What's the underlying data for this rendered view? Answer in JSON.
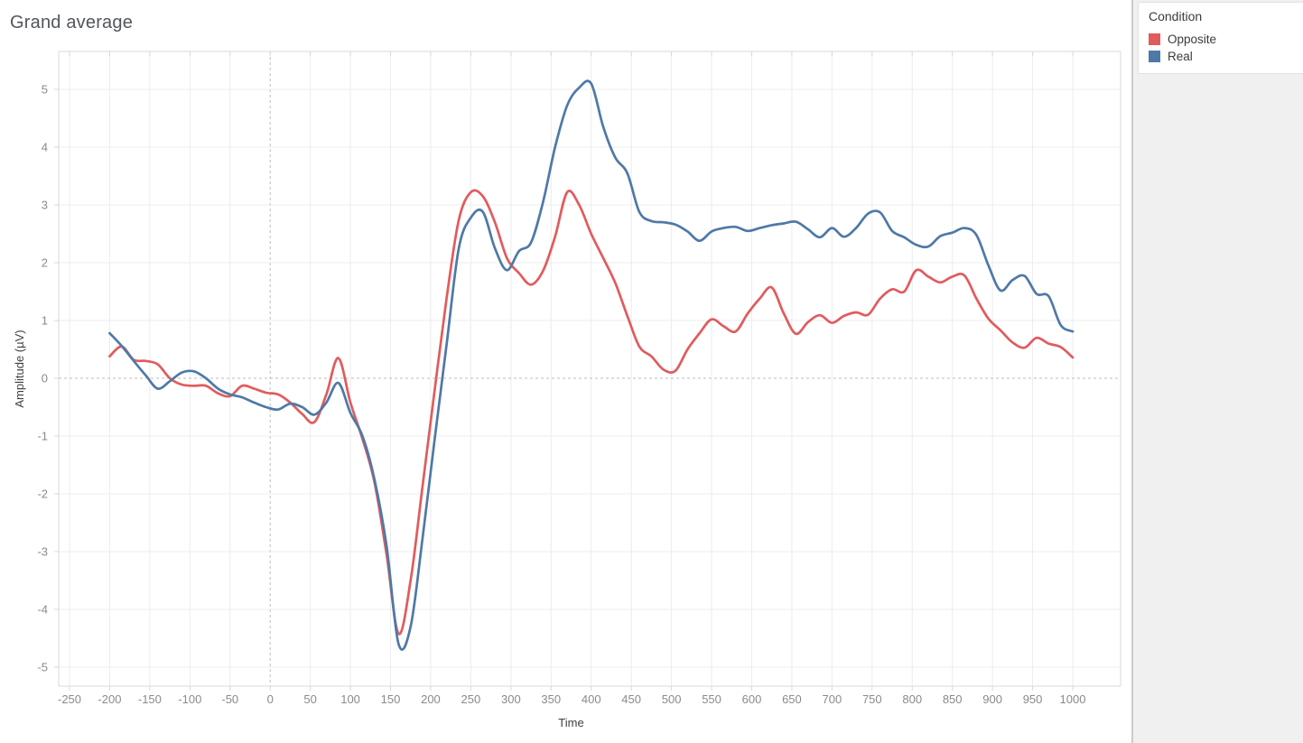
{
  "chart": {
    "title": "Grand average"
  },
  "legend": {
    "title": "Condition"
  },
  "chart_data": {
    "type": "line",
    "title": "Grand average",
    "xlabel": "Time",
    "ylabel": "Amplitude (µV)",
    "xlim": [
      -250,
      1000
    ],
    "ylim": [
      -5,
      5
    ],
    "x_ticks": [
      -250,
      -200,
      -150,
      -100,
      -50,
      0,
      50,
      100,
      150,
      200,
      250,
      300,
      350,
      400,
      450,
      500,
      550,
      600,
      650,
      700,
      750,
      800,
      850,
      900,
      950,
      1000
    ],
    "y_ticks": [
      -5,
      -4,
      -3,
      -2,
      -1,
      0,
      1,
      2,
      3,
      4,
      5
    ],
    "grid": true,
    "zero_lines": "dashed",
    "legend_position": "right",
    "x": [
      -200,
      -185,
      -170,
      -155,
      -140,
      -125,
      -110,
      -95,
      -80,
      -65,
      -50,
      -35,
      -20,
      -5,
      10,
      25,
      40,
      55,
      70,
      85,
      100,
      115,
      130,
      145,
      160,
      175,
      190,
      205,
      220,
      235,
      250,
      265,
      280,
      295,
      310,
      325,
      340,
      355,
      370,
      385,
      400,
      415,
      430,
      445,
      460,
      475,
      490,
      505,
      520,
      535,
      550,
      565,
      580,
      595,
      610,
      625,
      640,
      655,
      670,
      685,
      700,
      715,
      730,
      745,
      760,
      775,
      790,
      805,
      820,
      835,
      850,
      865,
      880,
      895,
      910,
      925,
      940,
      955,
      970,
      985,
      1000
    ],
    "series": [
      {
        "name": "Opposite",
        "color": "#e15b5d",
        "values": [
          0.38,
          0.55,
          0.32,
          0.3,
          0.24,
          0.0,
          -0.11,
          -0.13,
          -0.13,
          -0.26,
          -0.31,
          -0.13,
          -0.18,
          -0.25,
          -0.28,
          -0.42,
          -0.62,
          -0.76,
          -0.28,
          0.35,
          -0.42,
          -1.05,
          -1.8,
          -3.05,
          -4.42,
          -3.5,
          -1.85,
          -0.2,
          1.4,
          2.74,
          3.22,
          3.15,
          2.7,
          2.08,
          1.82,
          1.62,
          1.86,
          2.45,
          3.22,
          3.0,
          2.5,
          2.08,
          1.65,
          1.08,
          0.55,
          0.38,
          0.15,
          0.13,
          0.5,
          0.78,
          1.02,
          0.9,
          0.81,
          1.12,
          1.38,
          1.57,
          1.12,
          0.77,
          0.97,
          1.09,
          0.96,
          1.08,
          1.14,
          1.1,
          1.38,
          1.54,
          1.5,
          1.87,
          1.76,
          1.66,
          1.76,
          1.78,
          1.38,
          1.03,
          0.83,
          0.62,
          0.53,
          0.7,
          0.6,
          0.54,
          0.36
        ]
      },
      {
        "name": "Real",
        "color": "#4e79a7",
        "values": [
          0.78,
          0.56,
          0.3,
          0.05,
          -0.18,
          -0.05,
          0.1,
          0.12,
          0.0,
          -0.18,
          -0.28,
          -0.33,
          -0.42,
          -0.5,
          -0.54,
          -0.44,
          -0.5,
          -0.63,
          -0.42,
          -0.08,
          -0.6,
          -1.0,
          -1.75,
          -2.9,
          -4.6,
          -4.3,
          -2.75,
          -1.05,
          0.6,
          2.25,
          2.78,
          2.88,
          2.25,
          1.87,
          2.2,
          2.35,
          3.05,
          4.0,
          4.72,
          5.03,
          5.1,
          4.35,
          3.82,
          3.55,
          2.88,
          2.72,
          2.7,
          2.66,
          2.54,
          2.38,
          2.54,
          2.6,
          2.62,
          2.55,
          2.6,
          2.65,
          2.68,
          2.71,
          2.58,
          2.44,
          2.6,
          2.45,
          2.6,
          2.85,
          2.87,
          2.55,
          2.44,
          2.31,
          2.28,
          2.46,
          2.52,
          2.6,
          2.48,
          1.95,
          1.52,
          1.7,
          1.77,
          1.46,
          1.42,
          0.92,
          0.81
        ]
      }
    ],
    "styles": {
      "grid_color": "#ececec",
      "zero_line_color": "#bcbcbc",
      "axis_line_color": "#d8d8d8",
      "tick_label_color": "#8a8a8a",
      "plot_background": "#ffffff",
      "sidebar_background": "#f0f0f0"
    }
  }
}
